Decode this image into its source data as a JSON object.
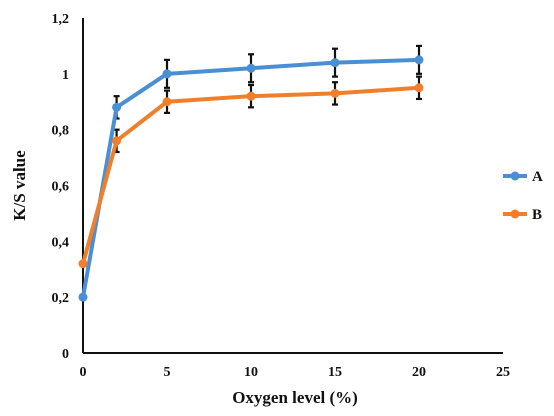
{
  "chart_data": {
    "type": "line",
    "title": "",
    "xlabel": "Oxygen level (%)",
    "ylabel": "K/S value",
    "xlim": [
      0,
      25
    ],
    "ylim": [
      0,
      1.2
    ],
    "x_ticks": [
      "0",
      "5",
      "10",
      "15",
      "20",
      "25"
    ],
    "y_ticks": [
      "0",
      "0,2",
      "0,4",
      "0,6",
      "0,8",
      "1",
      "1,2"
    ],
    "grid": false,
    "legend_position": "right",
    "x": [
      0,
      2,
      5,
      10,
      15,
      20
    ],
    "series": [
      {
        "name": "A",
        "color": "#4a8fd4",
        "values": [
          0.2,
          0.88,
          1.0,
          1.02,
          1.04,
          1.05
        ],
        "error": [
          0,
          0.04,
          0.05,
          0.05,
          0.05,
          0.05
        ]
      },
      {
        "name": "B",
        "color": "#f07f2c",
        "values": [
          0.32,
          0.76,
          0.9,
          0.92,
          0.93,
          0.95
        ],
        "error": [
          0,
          0.04,
          0.04,
          0.04,
          0.04,
          0.04
        ]
      }
    ]
  }
}
